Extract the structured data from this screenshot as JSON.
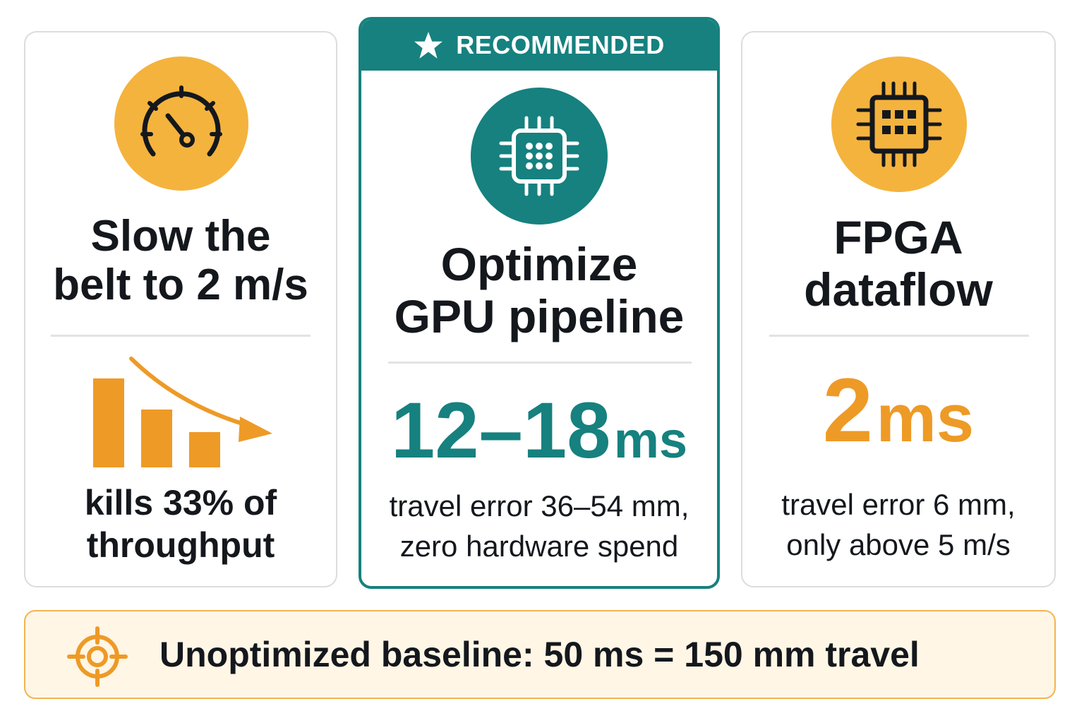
{
  "colors": {
    "teal": "#16817f",
    "orange": "#ee9a26",
    "amber": "#f4b33d",
    "banner_bg": "#fff6e6",
    "text": "#14181d"
  },
  "options": [
    {
      "icon": "speedometer-icon",
      "title_line1": "Slow the",
      "title_line2": "belt to 2 m/s",
      "chart_icon": "declining-bar-chart-icon",
      "desc_line1": "kills 33% of",
      "desc_line2": "throughput"
    },
    {
      "badge": "RECOMMENDED",
      "badge_icon": "star-icon",
      "icon": "gpu-chip-icon",
      "title_line1": "Optimize",
      "title_line2": "GPU pipeline",
      "metric_value": "12–18",
      "metric_unit": "ms",
      "desc_line1": "travel error 36–54 mm,",
      "desc_line2": "zero hardware spend"
    },
    {
      "icon": "fpga-chip-icon",
      "title_line1": "FPGA",
      "title_line2": "dataflow",
      "metric_value": "2",
      "metric_unit": "ms",
      "desc_line1": "travel error 6 mm,",
      "desc_line2": "only above 5 m/s"
    }
  ],
  "baseline": {
    "icon": "target-icon",
    "text": "Unoptimized baseline: 50 ms = 150 mm travel"
  }
}
